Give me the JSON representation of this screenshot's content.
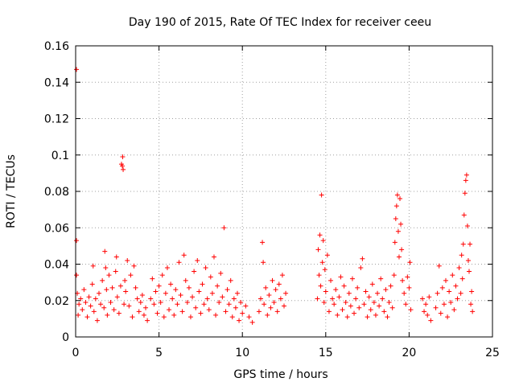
{
  "chart_data": {
    "type": "scatter",
    "title": "Day 190 of 2015, Rate Of TEC Index for receiver ceeu",
    "xlabel": "GPS time / hours",
    "ylabel": "ROTI / TECUs",
    "xlim": [
      0,
      25
    ],
    "ylim": [
      0,
      0.16
    ],
    "xticks": [
      0,
      5,
      10,
      15,
      20,
      25
    ],
    "yticks": [
      0,
      0.02,
      0.04,
      0.06,
      0.08,
      0.1,
      0.12,
      0.14,
      0.16
    ],
    "xtick_labels": [
      "0",
      "5",
      "10",
      "15",
      "20",
      "25"
    ],
    "ytick_labels": [
      "0",
      "0.02",
      "0.04",
      "0.06",
      "0.08",
      "0.1",
      "0.12",
      "0.14",
      "0.16"
    ],
    "grid": true,
    "marker": "+",
    "color": "#ff0000",
    "series": [
      {
        "name": "ROTI",
        "points": [
          [
            0.05,
            0.147
          ],
          [
            0.05,
            0.053
          ],
          [
            0.05,
            0.034
          ],
          [
            0.1,
            0.024
          ],
          [
            0.15,
            0.012
          ],
          [
            0.2,
            0.018
          ],
          [
            0.3,
            0.021
          ],
          [
            0.4,
            0.015
          ],
          [
            0.5,
            0.026
          ],
          [
            0.6,
            0.019
          ],
          [
            0.7,
            0.011
          ],
          [
            0.8,
            0.022
          ],
          [
            0.9,
            0.017
          ],
          [
            1.0,
            0.029
          ],
          [
            1.05,
            0.039
          ],
          [
            1.1,
            0.014
          ],
          [
            1.2,
            0.021
          ],
          [
            1.3,
            0.009
          ],
          [
            1.4,
            0.024
          ],
          [
            1.5,
            0.018
          ],
          [
            1.6,
            0.031
          ],
          [
            1.7,
            0.016
          ],
          [
            1.75,
            0.047
          ],
          [
            1.8,
            0.038
          ],
          [
            1.85,
            0.026
          ],
          [
            1.9,
            0.012
          ],
          [
            2.0,
            0.034
          ],
          [
            2.1,
            0.019
          ],
          [
            2.2,
            0.027
          ],
          [
            2.3,
            0.015
          ],
          [
            2.4,
            0.036
          ],
          [
            2.45,
            0.044
          ],
          [
            2.5,
            0.022
          ],
          [
            2.6,
            0.013
          ],
          [
            2.7,
            0.028
          ],
          [
            2.75,
            0.095
          ],
          [
            2.8,
            0.094
          ],
          [
            2.82,
            0.099
          ],
          [
            2.85,
            0.092
          ],
          [
            2.9,
            0.018
          ],
          [
            2.95,
            0.031
          ],
          [
            3.0,
            0.025
          ],
          [
            3.1,
            0.042
          ],
          [
            3.2,
            0.017
          ],
          [
            3.3,
            0.034
          ],
          [
            3.4,
            0.011
          ],
          [
            3.5,
            0.039
          ],
          [
            3.6,
            0.027
          ],
          [
            3.7,
            0.021
          ],
          [
            3.8,
            0.014
          ],
          [
            3.9,
            0.019
          ],
          [
            4.0,
            0.023
          ],
          [
            4.1,
            0.012
          ],
          [
            4.2,
            0.016
          ],
          [
            4.3,
            0.009
          ],
          [
            4.5,
            0.021
          ],
          [
            4.6,
            0.032
          ],
          [
            4.7,
            0.018
          ],
          [
            4.8,
            0.025
          ],
          [
            4.9,
            0.013
          ],
          [
            5.0,
            0.028
          ],
          [
            5.1,
            0.019
          ],
          [
            5.2,
            0.034
          ],
          [
            5.3,
            0.011
          ],
          [
            5.4,
            0.024
          ],
          [
            5.5,
            0.038
          ],
          [
            5.6,
            0.015
          ],
          [
            5.7,
            0.029
          ],
          [
            5.8,
            0.021
          ],
          [
            5.9,
            0.012
          ],
          [
            6.0,
            0.026
          ],
          [
            6.1,
            0.018
          ],
          [
            6.2,
            0.041
          ],
          [
            6.3,
            0.023
          ],
          [
            6.4,
            0.014
          ],
          [
            6.5,
            0.045
          ],
          [
            6.6,
            0.031
          ],
          [
            6.7,
            0.019
          ],
          [
            6.8,
            0.027
          ],
          [
            6.9,
            0.011
          ],
          [
            7.0,
            0.022
          ],
          [
            7.1,
            0.036
          ],
          [
            7.2,
            0.016
          ],
          [
            7.3,
            0.042
          ],
          [
            7.4,
            0.025
          ],
          [
            7.5,
            0.013
          ],
          [
            7.6,
            0.029
          ],
          [
            7.7,
            0.018
          ],
          [
            7.8,
            0.038
          ],
          [
            7.9,
            0.021
          ],
          [
            8.0,
            0.015
          ],
          [
            8.1,
            0.033
          ],
          [
            8.2,
            0.024
          ],
          [
            8.3,
            0.044
          ],
          [
            8.4,
            0.012
          ],
          [
            8.5,
            0.028
          ],
          [
            8.6,
            0.019
          ],
          [
            8.7,
            0.035
          ],
          [
            8.8,
            0.022
          ],
          [
            8.9,
            0.06
          ],
          [
            9.0,
            0.014
          ],
          [
            9.1,
            0.026
          ],
          [
            9.2,
            0.018
          ],
          [
            9.3,
            0.031
          ],
          [
            9.4,
            0.011
          ],
          [
            9.5,
            0.021
          ],
          [
            9.6,
            0.016
          ],
          [
            9.7,
            0.024
          ],
          [
            9.8,
            0.009
          ],
          [
            9.9,
            0.019
          ],
          [
            10.0,
            0.013
          ],
          [
            10.2,
            0.017
          ],
          [
            10.4,
            0.011
          ],
          [
            10.6,
            0.008
          ],
          [
            11.0,
            0.014
          ],
          [
            11.1,
            0.021
          ],
          [
            11.2,
            0.052
          ],
          [
            11.25,
            0.041
          ],
          [
            11.3,
            0.018
          ],
          [
            11.4,
            0.027
          ],
          [
            11.5,
            0.012
          ],
          [
            11.6,
            0.023
          ],
          [
            11.7,
            0.016
          ],
          [
            11.8,
            0.031
          ],
          [
            11.9,
            0.019
          ],
          [
            12.0,
            0.026
          ],
          [
            12.1,
            0.014
          ],
          [
            12.2,
            0.029
          ],
          [
            12.3,
            0.021
          ],
          [
            12.4,
            0.034
          ],
          [
            12.5,
            0.017
          ],
          [
            12.6,
            0.024
          ],
          [
            14.5,
            0.021
          ],
          [
            14.55,
            0.048
          ],
          [
            14.6,
            0.034
          ],
          [
            14.65,
            0.056
          ],
          [
            14.7,
            0.028
          ],
          [
            14.75,
            0.078
          ],
          [
            14.8,
            0.041
          ],
          [
            14.85,
            0.053
          ],
          [
            14.9,
            0.019
          ],
          [
            14.95,
            0.037
          ],
          [
            15.0,
            0.025
          ],
          [
            15.1,
            0.045
          ],
          [
            15.2,
            0.014
          ],
          [
            15.3,
            0.031
          ],
          [
            15.4,
            0.021
          ],
          [
            15.5,
            0.018
          ],
          [
            15.6,
            0.026
          ],
          [
            15.7,
            0.012
          ],
          [
            15.8,
            0.022
          ],
          [
            15.9,
            0.033
          ],
          [
            16.0,
            0.015
          ],
          [
            16.1,
            0.028
          ],
          [
            16.2,
            0.019
          ],
          [
            16.3,
            0.011
          ],
          [
            16.4,
            0.024
          ],
          [
            16.5,
            0.017
          ],
          [
            16.6,
            0.032
          ],
          [
            16.7,
            0.013
          ],
          [
            16.8,
            0.021
          ],
          [
            16.9,
            0.027
          ],
          [
            17.0,
            0.016
          ],
          [
            17.1,
            0.038
          ],
          [
            17.2,
            0.043
          ],
          [
            17.3,
            0.018
          ],
          [
            17.4,
            0.025
          ],
          [
            17.5,
            0.011
          ],
          [
            17.6,
            0.022
          ],
          [
            17.7,
            0.015
          ],
          [
            17.8,
            0.029
          ],
          [
            17.9,
            0.019
          ],
          [
            18.0,
            0.012
          ],
          [
            18.1,
            0.024
          ],
          [
            18.2,
            0.017
          ],
          [
            18.3,
            0.032
          ],
          [
            18.4,
            0.021
          ],
          [
            18.5,
            0.014
          ],
          [
            18.6,
            0.026
          ],
          [
            18.7,
            0.011
          ],
          [
            18.8,
            0.019
          ],
          [
            18.9,
            0.028
          ],
          [
            19.0,
            0.016
          ],
          [
            19.1,
            0.034
          ],
          [
            19.15,
            0.052
          ],
          [
            19.2,
            0.065
          ],
          [
            19.25,
            0.072
          ],
          [
            19.3,
            0.078
          ],
          [
            19.35,
            0.058
          ],
          [
            19.4,
            0.044
          ],
          [
            19.45,
            0.076
          ],
          [
            19.5,
            0.062
          ],
          [
            19.55,
            0.048
          ],
          [
            19.6,
            0.031
          ],
          [
            19.7,
            0.024
          ],
          [
            19.8,
            0.018
          ],
          [
            19.9,
            0.033
          ],
          [
            20.0,
            0.027
          ],
          [
            20.05,
            0.041
          ],
          [
            20.1,
            0.015
          ],
          [
            20.8,
            0.021
          ],
          [
            20.9,
            0.014
          ],
          [
            21.0,
            0.018
          ],
          [
            21.1,
            0.012
          ],
          [
            21.2,
            0.022
          ],
          [
            21.3,
            0.009
          ],
          [
            21.6,
            0.016
          ],
          [
            21.7,
            0.024
          ],
          [
            21.8,
            0.039
          ],
          [
            21.9,
            0.013
          ],
          [
            22.0,
            0.027
          ],
          [
            22.1,
            0.018
          ],
          [
            22.2,
            0.031
          ],
          [
            22.3,
            0.011
          ],
          [
            22.4,
            0.025
          ],
          [
            22.5,
            0.019
          ],
          [
            22.6,
            0.034
          ],
          [
            22.7,
            0.015
          ],
          [
            22.8,
            0.028
          ],
          [
            22.9,
            0.021
          ],
          [
            23.0,
            0.038
          ],
          [
            23.1,
            0.024
          ],
          [
            23.15,
            0.045
          ],
          [
            23.2,
            0.032
          ],
          [
            23.25,
            0.051
          ],
          [
            23.3,
            0.067
          ],
          [
            23.35,
            0.079
          ],
          [
            23.4,
            0.086
          ],
          [
            23.45,
            0.089
          ],
          [
            23.5,
            0.061
          ],
          [
            23.55,
            0.042
          ],
          [
            23.6,
            0.036
          ],
          [
            23.65,
            0.051
          ],
          [
            23.7,
            0.018
          ],
          [
            23.75,
            0.025
          ],
          [
            23.8,
            0.014
          ]
        ]
      }
    ]
  }
}
